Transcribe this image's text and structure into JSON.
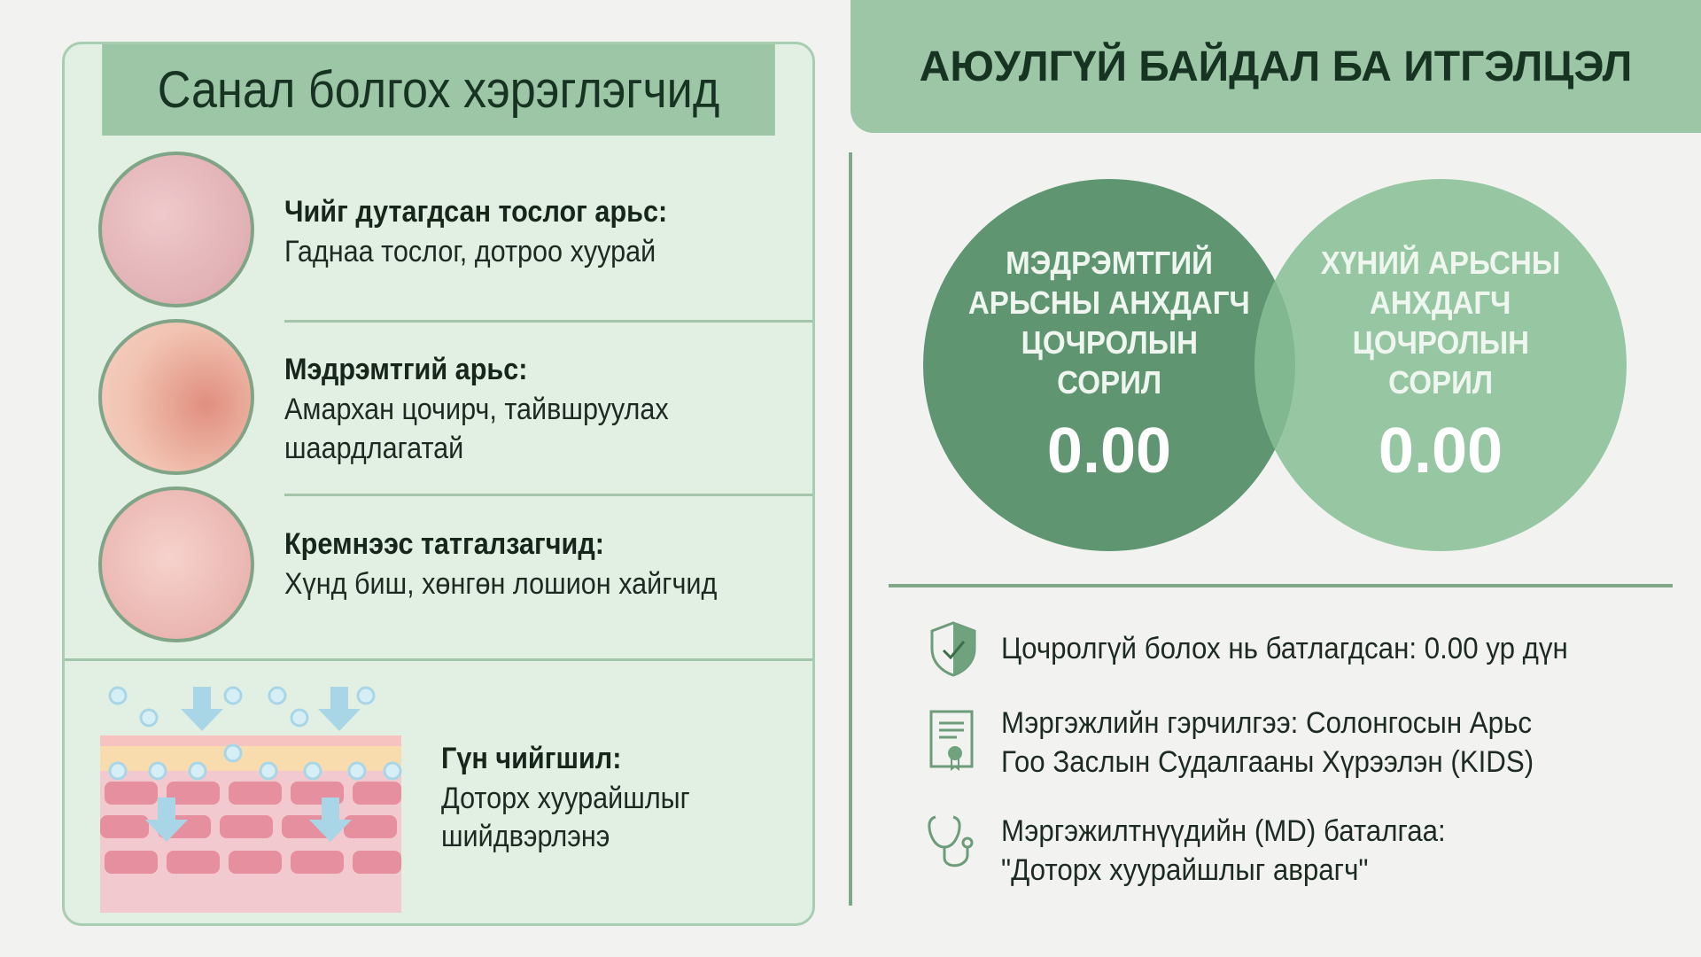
{
  "left": {
    "title": "Санал болгох хэрэглэгчид",
    "items": [
      {
        "title": "Чийг дутагдсан тослог арьс:",
        "lines": [
          "Гаднаа тослог, дотроо хуурай"
        ]
      },
      {
        "title": "Мэдрэмтгий арьс:",
        "lines": [
          "Амархан цочирч, тайвшруулах",
          "шаардлагатай"
        ]
      },
      {
        "title": "Кремнээс татгалзагчид:",
        "lines": [
          "Хүнд биш, хөнгөн лошион хайгчид"
        ]
      },
      {
        "title": "Гүн чийгшил:",
        "lines": [
          "Доторх хуурайшлыг",
          "шийдвэрлэнэ"
        ]
      }
    ]
  },
  "right": {
    "title": "АЮУЛГҮЙ БАЙДАЛ БА ИТГЭЛЦЭЛ",
    "circles": [
      {
        "lines": [
          "МЭДРЭМТГИЙ",
          "АРЬСНЫ АНХДАГЧ",
          "ЦОЧРОЛЫН",
          "СОРИЛ"
        ],
        "value": "0.00",
        "color": "#5f9571"
      },
      {
        "lines": [
          "ХҮНИЙ АРЬСНЫ",
          "АНХДАГЧ",
          "ЦОЧРОЛЫН",
          "СОРИЛ"
        ],
        "value": "0.00",
        "color": "#93c29e"
      }
    ],
    "list": [
      {
        "icon": "shield-check-icon",
        "lines": [
          "Цочролгүй болох нь батлагдсан: 0.00 ур дүн"
        ]
      },
      {
        "icon": "certificate-icon",
        "lines": [
          "Мэргэжлийн гэрчилгээ: Солонгосын Арьс",
          "Гоо Заслын Судалгааны Хүрээлэн (KIDS)"
        ]
      },
      {
        "icon": "stethoscope-icon",
        "lines": [
          "Мэргэжилтнүүдийн (MD) баталгаа:",
          "\"Доторх хуурайшлыг аврагч\""
        ]
      }
    ]
  }
}
